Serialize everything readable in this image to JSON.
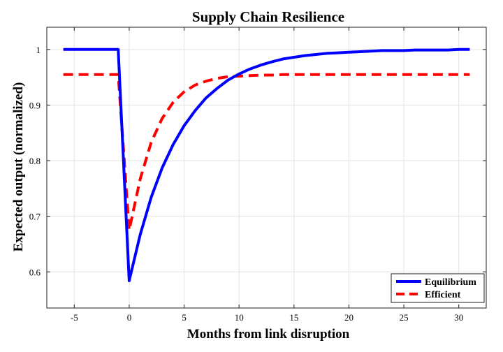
{
  "chart_data": {
    "type": "line",
    "title": "Supply Chain Resilience",
    "xlabel": "Months from link disruption",
    "ylabel": "Expected output (normalized)",
    "xlim": [
      -7.5,
      32.5
    ],
    "ylim": [
      0.535,
      1.04
    ],
    "xticks": [
      -5,
      0,
      5,
      10,
      15,
      20,
      25,
      30
    ],
    "xtick_labels": [
      "-5",
      "0",
      "5",
      "10",
      "15",
      "20",
      "25",
      "30"
    ],
    "yticks": [
      0.6,
      0.7,
      0.8,
      0.9,
      1.0
    ],
    "ytick_labels": [
      "0.6",
      "0.7",
      "0.8",
      "0.9",
      "1"
    ],
    "grid": true,
    "legend_position": "bottom-right",
    "series": [
      {
        "name": "Equilibrium",
        "color": "#0000ff",
        "dash": "solid",
        "x": [
          -6,
          -1,
          0,
          1,
          2,
          3,
          4,
          5,
          6,
          7,
          8,
          9,
          10,
          11,
          12,
          13,
          14,
          15,
          16,
          17,
          18,
          19,
          20,
          21,
          22,
          23,
          24,
          25,
          26,
          27,
          28,
          29,
          30,
          31
        ],
        "y": [
          1.0,
          1.0,
          0.584,
          0.667,
          0.734,
          0.787,
          0.829,
          0.863,
          0.89,
          0.913,
          0.93,
          0.945,
          0.956,
          0.965,
          0.972,
          0.978,
          0.983,
          0.986,
          0.989,
          0.991,
          0.993,
          0.994,
          0.995,
          0.996,
          0.997,
          0.998,
          0.998,
          0.998,
          0.999,
          0.999,
          0.999,
          0.999,
          1.0,
          1.0
        ]
      },
      {
        "name": "Efficient",
        "color": "#ff0000",
        "dash": "dashed",
        "x": [
          -6,
          -1,
          0,
          1,
          2,
          3,
          4,
          5,
          6,
          7,
          8,
          9,
          10,
          11,
          12,
          13,
          14,
          15,
          16,
          17,
          18,
          19,
          20,
          21,
          22,
          23,
          24,
          25,
          26,
          27,
          28,
          29,
          30,
          31
        ],
        "y": [
          0.955,
          0.955,
          0.675,
          0.767,
          0.833,
          0.876,
          0.905,
          0.924,
          0.936,
          0.943,
          0.948,
          0.951,
          0.952,
          0.953,
          0.954,
          0.954,
          0.955,
          0.955,
          0.955,
          0.955,
          0.955,
          0.955,
          0.955,
          0.955,
          0.955,
          0.955,
          0.955,
          0.955,
          0.955,
          0.955,
          0.955,
          0.955,
          0.955,
          0.955
        ]
      }
    ]
  }
}
